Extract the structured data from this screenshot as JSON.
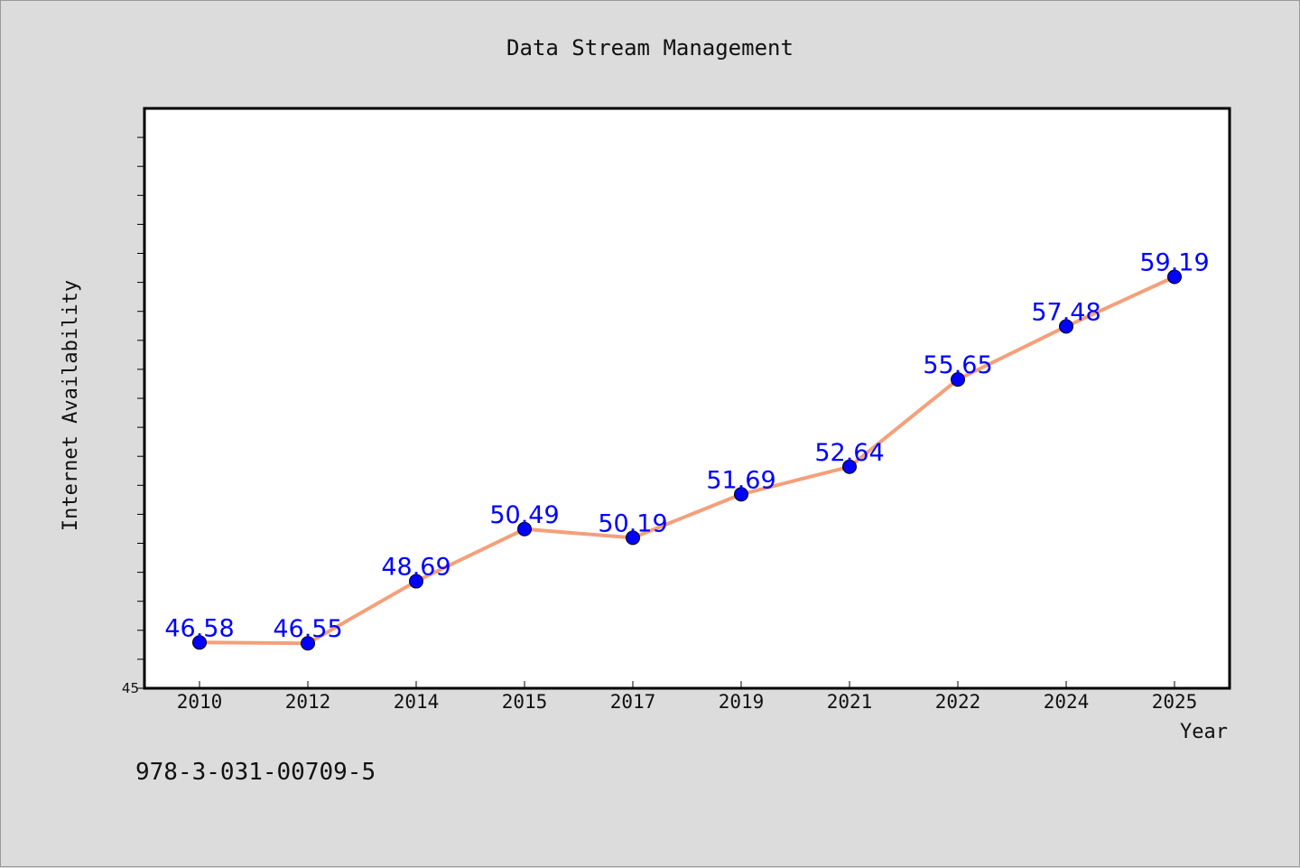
{
  "chart_data": {
    "type": "line",
    "title": "Data Stream Management",
    "xlabel": "Year",
    "ylabel": "Internet Availability",
    "x": [
      "2010",
      "2012",
      "2014",
      "2015",
      "2017",
      "2019",
      "2021",
      "2022",
      "2024",
      "2025"
    ],
    "series": [
      {
        "values": [
          46.58,
          46.55,
          48.69,
          50.49,
          50.19,
          51.69,
          52.64,
          55.65,
          57.48,
          59.19
        ],
        "data_labels": [
          "46.58",
          "46.55",
          "48.69",
          "50.49",
          "50.19",
          "51.69",
          "52.64",
          "55.65",
          "57.48",
          "59.19"
        ]
      }
    ],
    "ylim": [
      45,
      65
    ],
    "y_tick_labels": [
      "45"
    ],
    "grid": false,
    "colors": {
      "line": "#f4a07a",
      "marker": "#0000ff",
      "data_label": "#0000ff",
      "plot_bg": "#ffffff",
      "page_bg": "#dcdcdc"
    }
  },
  "footer": {
    "isbn": "978-3-031-00709-5"
  }
}
